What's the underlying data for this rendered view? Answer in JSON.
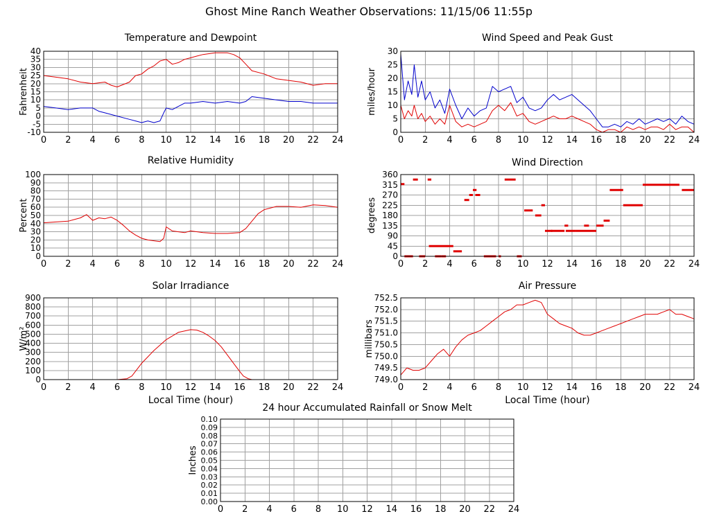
{
  "page": {
    "title": "Ghost Mine Ranch Weather Observations: 11/15/06 11:55p"
  },
  "colors": {
    "primary": "#e00000",
    "secondary": "#0000cc",
    "grid": "#a0a0a0",
    "frame": "#000000"
  },
  "chart_data": [
    {
      "id": "temperature",
      "type": "line",
      "title": "Temperature and Dewpoint",
      "xlabel": "",
      "ylabel": "Fahrenheit",
      "xlim": [
        0,
        24
      ],
      "ylim": [
        -10,
        40
      ],
      "xticks": [
        0,
        2,
        4,
        6,
        8,
        10,
        12,
        14,
        16,
        18,
        20,
        22,
        24
      ],
      "yticks": [
        -10,
        -5,
        0,
        5,
        10,
        15,
        20,
        25,
        30,
        35,
        40
      ],
      "grid": true,
      "series": [
        {
          "color": "#e00000",
          "x": [
            0,
            1,
            2,
            3,
            4,
            5,
            5.5,
            6,
            7,
            7.5,
            8,
            8.5,
            9,
            9.5,
            10,
            10.5,
            11,
            11.5,
            12,
            12.5,
            13,
            14,
            15,
            15.5,
            16,
            16.5,
            17,
            18,
            19,
            20,
            21,
            22,
            23,
            24
          ],
          "y": [
            25,
            24,
            23,
            21,
            20,
            21,
            19,
            18,
            21,
            25,
            26,
            29,
            31,
            34,
            35,
            32,
            33,
            35,
            36,
            37,
            38,
            39,
            39,
            38,
            36,
            32,
            28,
            26,
            23,
            22,
            21,
            19,
            20,
            20
          ]
        },
        {
          "color": "#0000cc",
          "x": [
            0,
            1,
            2,
            3,
            4,
            4.5,
            5,
            6,
            7,
            7.5,
            8,
            8.5,
            9,
            9.5,
            9.8,
            10,
            10.5,
            11,
            11.5,
            12,
            13,
            14,
            15,
            16,
            16.5,
            17,
            18,
            19,
            20,
            21,
            22,
            23,
            24
          ],
          "y": [
            6,
            5,
            4,
            5,
            5,
            3,
            2,
            0,
            -2,
            -3,
            -4,
            -3,
            -4,
            -3,
            2,
            5,
            4,
            6,
            8,
            8,
            9,
            8,
            9,
            8,
            9,
            12,
            11,
            10,
            9,
            9,
            8,
            8,
            8
          ]
        }
      ]
    },
    {
      "id": "wind-speed",
      "type": "line",
      "title": "Wind Speed and Peak Gust",
      "xlabel": "",
      "ylabel": "miles/hour",
      "xlim": [
        0,
        24
      ],
      "ylim": [
        0,
        30
      ],
      "xticks": [
        0,
        2,
        4,
        6,
        8,
        10,
        12,
        14,
        16,
        18,
        20,
        22,
        24
      ],
      "yticks": [
        0,
        5,
        10,
        15,
        20,
        25,
        30
      ],
      "grid": true,
      "series": [
        {
          "color": "#0000cc",
          "x": [
            0,
            0.3,
            0.6,
            0.9,
            1.1,
            1.4,
            1.7,
            2,
            2.4,
            2.8,
            3.2,
            3.6,
            4,
            4.5,
            5,
            5.5,
            6,
            6.5,
            7,
            7.5,
            8,
            8.5,
            9,
            9.5,
            10,
            10.5,
            11,
            11.5,
            12,
            12.5,
            13,
            13.5,
            14,
            14.5,
            15,
            15.5,
            16,
            16.5,
            17,
            17.5,
            18,
            18.5,
            19,
            19.5,
            20,
            20.5,
            21,
            21.5,
            22,
            22.5,
            23,
            23.5,
            24
          ],
          "y": [
            29,
            12,
            19,
            14,
            25,
            13,
            19,
            12,
            15,
            9,
            12,
            7,
            16,
            10,
            5,
            9,
            6,
            8,
            9,
            17,
            15,
            16,
            17,
            11,
            13,
            9,
            8,
            9,
            12,
            14,
            12,
            13,
            14,
            12,
            10,
            8,
            5,
            2,
            2,
            3,
            2,
            4,
            3,
            5,
            3,
            4,
            5,
            4,
            5,
            3,
            6,
            4,
            3
          ]
        },
        {
          "color": "#e00000",
          "x": [
            0,
            0.3,
            0.6,
            0.9,
            1.1,
            1.4,
            1.7,
            2,
            2.4,
            2.8,
            3.2,
            3.6,
            4,
            4.5,
            5,
            5.5,
            6,
            6.5,
            7,
            7.5,
            8,
            8.5,
            9,
            9.5,
            10,
            10.5,
            11,
            11.5,
            12,
            12.5,
            13,
            13.5,
            14,
            14.5,
            15,
            15.5,
            16,
            16.5,
            17,
            17.5,
            18,
            18.5,
            19,
            19.5,
            20,
            20.5,
            21,
            21.5,
            22,
            22.5,
            23,
            23.5,
            24
          ],
          "y": [
            10,
            5,
            8,
            6,
            10,
            5,
            7,
            4,
            6,
            3,
            5,
            3,
            10,
            4,
            2,
            3,
            2,
            3,
            4,
            8,
            10,
            8,
            11,
            6,
            7,
            4,
            3,
            4,
            5,
            6,
            5,
            5,
            6,
            5,
            4,
            3,
            1,
            0,
            1,
            1,
            0,
            2,
            1,
            2,
            1,
            2,
            2,
            1,
            3,
            1,
            2,
            2,
            0
          ]
        }
      ]
    },
    {
      "id": "humidity",
      "type": "line",
      "title": "Relative Humidity",
      "xlabel": "",
      "ylabel": "Percent",
      "xlim": [
        0,
        24
      ],
      "ylim": [
        0,
        100
      ],
      "xticks": [
        0,
        2,
        4,
        6,
        8,
        10,
        12,
        14,
        16,
        18,
        20,
        22,
        24
      ],
      "yticks": [
        0,
        10,
        20,
        30,
        40,
        50,
        60,
        70,
        80,
        90,
        100
      ],
      "grid": true,
      "series": [
        {
          "color": "#e00000",
          "x": [
            0,
            1,
            2,
            2.5,
            3,
            3.5,
            4,
            4.5,
            5,
            5.5,
            6,
            6.5,
            7,
            7.5,
            8,
            8.5,
            9,
            9.5,
            9.8,
            10,
            10.5,
            11,
            11.5,
            12,
            13,
            14,
            15,
            16,
            16.5,
            17,
            17.5,
            18,
            19,
            20,
            21,
            22,
            23,
            24
          ],
          "y": [
            41,
            42,
            43,
            45,
            47,
            51,
            44,
            47,
            46,
            48,
            44,
            38,
            31,
            26,
            22,
            20,
            19,
            18,
            22,
            36,
            31,
            30,
            29,
            31,
            29,
            28,
            28,
            29,
            34,
            43,
            52,
            57,
            61,
            61,
            60,
            63,
            62,
            60
          ]
        }
      ]
    },
    {
      "id": "wind-direction",
      "type": "scatter",
      "title": "Wind Direction",
      "xlabel": "",
      "ylabel": "degrees",
      "xlim": [
        0,
        24
      ],
      "ylim": [
        0,
        360
      ],
      "xticks": [
        0,
        2,
        4,
        6,
        8,
        10,
        12,
        14,
        16,
        18,
        20,
        22,
        24
      ],
      "yticks": [
        0,
        45,
        90,
        135,
        180,
        225,
        270,
        315,
        360
      ],
      "grid": true,
      "series": [
        {
          "color": "#e00000",
          "segments": [
            [
              0,
              0.3,
              318
            ],
            [
              0.3,
              1,
              0
            ],
            [
              1,
              1.4,
              338
            ],
            [
              1.5,
              2,
              0
            ],
            [
              2.2,
              2.5,
              338
            ],
            [
              2.3,
              4.3,
              45
            ],
            [
              2.8,
              3.3,
              0
            ],
            [
              3.3,
              3.7,
              0
            ],
            [
              4.3,
              5,
              22
            ],
            [
              5.2,
              5.6,
              248
            ],
            [
              5.6,
              5.9,
              270
            ],
            [
              5.9,
              6.2,
              292
            ],
            [
              6.1,
              6.5,
              270
            ],
            [
              6.8,
              7.8,
              0
            ],
            [
              8,
              8.2,
              0
            ],
            [
              8.5,
              9.4,
              338
            ],
            [
              9.5,
              9.9,
              0
            ],
            [
              10.1,
              10.8,
              202
            ],
            [
              11,
              11.5,
              180
            ],
            [
              11.5,
              11.8,
              225
            ],
            [
              11.8,
              12.4,
              112
            ],
            [
              12.3,
              13.4,
              112
            ],
            [
              13.4,
              13.7,
              135
            ],
            [
              13.5,
              14.3,
              112
            ],
            [
              14.3,
              16,
              112
            ],
            [
              15,
              15.4,
              135
            ],
            [
              16,
              16.6,
              135
            ],
            [
              16.6,
              17.1,
              157
            ],
            [
              17.1,
              18.2,
              292
            ],
            [
              18.2,
              19.8,
              225
            ],
            [
              19.8,
              22.8,
              315
            ],
            [
              23,
              24,
              292
            ]
          ]
        }
      ]
    },
    {
      "id": "solar",
      "type": "line",
      "title": "Solar Irradiance",
      "xlabel": "Local Time (hour)",
      "ylabel": "W/m²",
      "xlim": [
        0,
        24
      ],
      "ylim": [
        0,
        900
      ],
      "xticks": [
        0,
        2,
        4,
        6,
        8,
        10,
        12,
        14,
        16,
        18,
        20,
        22,
        24
      ],
      "yticks": [
        0,
        100,
        200,
        300,
        400,
        500,
        600,
        700,
        800,
        900
      ],
      "grid": true,
      "series": [
        {
          "color": "#e00000",
          "x": [
            0,
            6,
            6.8,
            7.2,
            8,
            9,
            10,
            11,
            12,
            12.5,
            13,
            13.5,
            14,
            14.5,
            15,
            15.5,
            16,
            16.3,
            16.7,
            17,
            24
          ],
          "y": [
            0,
            0,
            10,
            40,
            180,
            320,
            440,
            520,
            550,
            545,
            520,
            480,
            430,
            360,
            270,
            180,
            90,
            40,
            10,
            0,
            0
          ]
        }
      ]
    },
    {
      "id": "pressure",
      "type": "line",
      "title": "Air Pressure",
      "xlabel": "Local Time (hour)",
      "ylabel": "millibars",
      "xlim": [
        0,
        24
      ],
      "ylim": [
        749.0,
        752.5
      ],
      "xticks": [
        0,
        2,
        4,
        6,
        8,
        10,
        12,
        14,
        16,
        18,
        20,
        22,
        24
      ],
      "yticks": [
        749.0,
        749.5,
        750.0,
        750.5,
        751.0,
        751.5,
        752.0,
        752.5
      ],
      "yticklabels": [
        "749.0",
        "749.5",
        "750.0",
        "750.5",
        "751.0",
        "751.5",
        "752.0",
        "752.5"
      ],
      "grid": true,
      "series": [
        {
          "color": "#e00000",
          "x": [
            0,
            0.5,
            1,
            1.5,
            2,
            2.5,
            3,
            3.5,
            4,
            4.5,
            5,
            5.5,
            6,
            6.5,
            7,
            7.5,
            8,
            8.5,
            9,
            9.5,
            10,
            10.5,
            11,
            11.5,
            12,
            12.5,
            13,
            13.5,
            14,
            14.5,
            15,
            15.5,
            16,
            16.5,
            17,
            17.5,
            18,
            18.5,
            19,
            19.5,
            20,
            20.5,
            21,
            21.5,
            22,
            22.5,
            23,
            23.5,
            24
          ],
          "y": [
            749.2,
            749.5,
            749.4,
            749.4,
            749.5,
            749.8,
            750.1,
            750.3,
            750.0,
            750.4,
            750.7,
            750.9,
            751.0,
            751.1,
            751.3,
            751.5,
            751.7,
            751.9,
            752.0,
            752.2,
            752.2,
            752.3,
            752.4,
            752.3,
            751.8,
            751.6,
            751.4,
            751.3,
            751.2,
            751.0,
            750.9,
            750.9,
            751.0,
            751.1,
            751.2,
            751.3,
            751.4,
            751.5,
            751.6,
            751.7,
            751.8,
            751.8,
            751.8,
            751.9,
            752.0,
            751.8,
            751.8,
            751.7,
            751.6
          ]
        }
      ]
    },
    {
      "id": "rainfall",
      "type": "line",
      "title": "24 hour Accumulated Rainfall or Snow Melt",
      "xlabel": "",
      "ylabel": "Inches",
      "xlim": [
        0,
        24
      ],
      "ylim": [
        0,
        0.1
      ],
      "xticks": [
        0,
        2,
        4,
        6,
        8,
        10,
        12,
        14,
        16,
        18,
        20,
        22,
        24
      ],
      "yticks": [
        0,
        0.01,
        0.02,
        0.03,
        0.04,
        0.05,
        0.06,
        0.07,
        0.08,
        0.09,
        0.1
      ],
      "yticklabels": [
        "0.00",
        "0.01",
        "0.02",
        "0.03",
        "0.04",
        "0.05",
        "0.06",
        "0.07",
        "0.08",
        "0.09",
        "0.10"
      ],
      "grid": true,
      "series": [
        {
          "color": "#e00000",
          "x": [
            0,
            24
          ],
          "y": [
            0,
            0
          ]
        }
      ]
    }
  ]
}
